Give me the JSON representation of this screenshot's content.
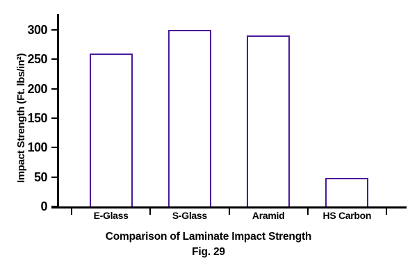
{
  "figure": {
    "caption": "Fig. 29"
  },
  "chart_data": {
    "type": "bar",
    "categories": [
      "E-Glass",
      "S-Glass",
      "Aramid",
      "HS Carbon"
    ],
    "values": [
      260,
      300,
      290,
      48
    ],
    "title": "Comparison of Laminate Impact Strength",
    "xlabel": "",
    "ylabel": "Impact Strength (Ft. lbs/in²)",
    "ylim": [
      0,
      300
    ],
    "yticks": [
      0,
      50,
      100,
      150,
      200,
      250,
      300
    ],
    "grid": false,
    "legend_position": "none",
    "colors": {
      "bar_border": "#4a1a9c",
      "bar_fill": "#ffffff",
      "axis": "#000000",
      "text": "#000000",
      "background": "#ffffff"
    }
  }
}
